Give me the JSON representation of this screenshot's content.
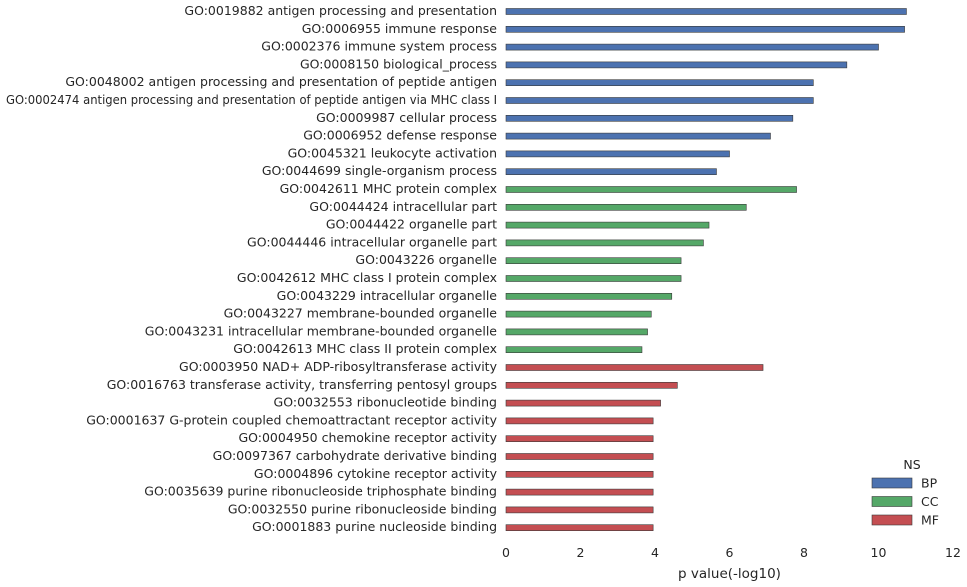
{
  "chart_data": {
    "type": "bar",
    "orientation": "horizontal",
    "xlabel": "p value(-log10)",
    "ylabel": "",
    "xlim": [
      0,
      12
    ],
    "xticks": [
      "0",
      "2",
      "4",
      "6",
      "8",
      "10",
      "12"
    ],
    "grid": false,
    "legend": {
      "title": "NS",
      "placement": "bottom-right",
      "entries": [
        {
          "name": "BP",
          "color": "#4c72b0"
        },
        {
          "name": "CC",
          "color": "#55a868"
        },
        {
          "name": "MF",
          "color": "#c44e52"
        }
      ]
    },
    "bars": [
      {
        "label": "GO:0019882 antigen processing and presentation",
        "value": 10.75,
        "ns": "BP"
      },
      {
        "label": "GO:0006955 immune response",
        "value": 10.7,
        "ns": "BP"
      },
      {
        "label": "GO:0002376 immune system process",
        "value": 10.0,
        "ns": "BP"
      },
      {
        "label": "GO:0008150 biological_process",
        "value": 9.15,
        "ns": "BP"
      },
      {
        "label": "GO:0048002 antigen processing and presentation of peptide antigen",
        "value": 8.25,
        "ns": "BP"
      },
      {
        "label": "GO:0002474 antigen processing and presentation of peptide antigen via MHC class I",
        "value": 8.25,
        "ns": "BP"
      },
      {
        "label": "GO:0009987 cellular process",
        "value": 7.7,
        "ns": "BP"
      },
      {
        "label": "GO:0006952 defense response",
        "value": 7.1,
        "ns": "BP"
      },
      {
        "label": "GO:0045321 leukocyte activation",
        "value": 6.0,
        "ns": "BP"
      },
      {
        "label": "GO:0044699 single-organism process",
        "value": 5.65,
        "ns": "BP"
      },
      {
        "label": "GO:0042611 MHC protein complex",
        "value": 7.8,
        "ns": "CC"
      },
      {
        "label": "GO:0044424 intracellular part",
        "value": 6.45,
        "ns": "CC"
      },
      {
        "label": "GO:0044422 organelle part",
        "value": 5.45,
        "ns": "CC"
      },
      {
        "label": "GO:0044446 intracellular organelle part",
        "value": 5.3,
        "ns": "CC"
      },
      {
        "label": "GO:0043226 organelle",
        "value": 4.7,
        "ns": "CC"
      },
      {
        "label": "GO:0042612 MHC class I protein complex",
        "value": 4.7,
        "ns": "CC"
      },
      {
        "label": "GO:0043229 intracellular organelle",
        "value": 4.45,
        "ns": "CC"
      },
      {
        "label": "GO:0043227 membrane-bounded organelle",
        "value": 3.9,
        "ns": "CC"
      },
      {
        "label": "GO:0043231 intracellular membrane-bounded organelle",
        "value": 3.8,
        "ns": "CC"
      },
      {
        "label": "GO:0042613 MHC class II protein complex",
        "value": 3.65,
        "ns": "CC"
      },
      {
        "label": "GO:0003950 NAD+ ADP-ribosyltransferase activity",
        "value": 6.9,
        "ns": "MF"
      },
      {
        "label": "GO:0016763 transferase activity, transferring pentosyl groups",
        "value": 4.6,
        "ns": "MF"
      },
      {
        "label": "GO:0032553 ribonucleotide binding",
        "value": 4.15,
        "ns": "MF"
      },
      {
        "label": "GO:0001637 G-protein coupled chemoattractant receptor activity",
        "value": 3.95,
        "ns": "MF"
      },
      {
        "label": "GO:0004950 chemokine receptor activity",
        "value": 3.95,
        "ns": "MF"
      },
      {
        "label": "GO:0097367 carbohydrate derivative binding",
        "value": 3.95,
        "ns": "MF"
      },
      {
        "label": "GO:0004896 cytokine receptor activity",
        "value": 3.95,
        "ns": "MF"
      },
      {
        "label": "GO:0035639 purine ribonucleoside triphosphate binding",
        "value": 3.95,
        "ns": "MF"
      },
      {
        "label": "GO:0032550 purine ribonucleoside binding",
        "value": 3.95,
        "ns": "MF"
      },
      {
        "label": "GO:0001883 purine nucleoside binding",
        "value": 3.95,
        "ns": "MF"
      }
    ]
  }
}
